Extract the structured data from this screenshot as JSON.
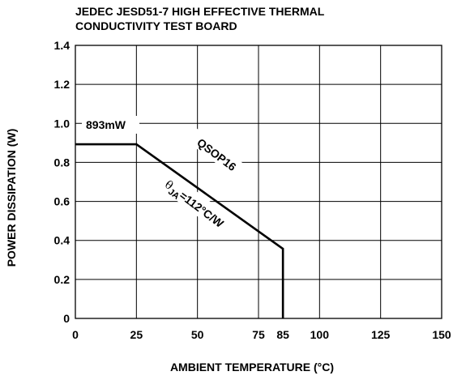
{
  "chart_data": {
    "type": "line",
    "title_lines": [
      "JEDEC JESD51-7 HIGH EFFECTIVE THERMAL",
      "CONDUCTIVITY TEST BOARD"
    ],
    "xlabel": "AMBIENT TEMPERATURE (°C)",
    "ylabel": "POWER DISSIPATION (W)",
    "xlim": [
      0,
      150
    ],
    "ylim": [
      0,
      1.4
    ],
    "x_ticks": [
      0,
      25,
      50,
      75,
      85,
      100,
      125,
      150
    ],
    "y_ticks": [
      0,
      0.2,
      0.4,
      0.6,
      0.8,
      1.0,
      1.2,
      1.4
    ],
    "y_tick_labels": [
      "0",
      "0.2",
      "0.4",
      "0.6",
      "0.8",
      "1.0",
      "1.2",
      "1.4"
    ],
    "grid_x": [
      25,
      50,
      75,
      100,
      125
    ],
    "grid_y": [
      0.2,
      0.4,
      0.6,
      0.8,
      1.0,
      1.2
    ],
    "series": [
      {
        "x": [
          0,
          25,
          85,
          85
        ],
        "y": [
          0.893,
          0.893,
          0.357,
          0
        ]
      }
    ],
    "annotations": {
      "max_power": "893mW",
      "package": "QSOP16",
      "theta_symbol": "θ",
      "theta_sub": "JA",
      "theta_value": "=112°C/W"
    },
    "line_color": "#000000",
    "grid_color": "#000000"
  }
}
